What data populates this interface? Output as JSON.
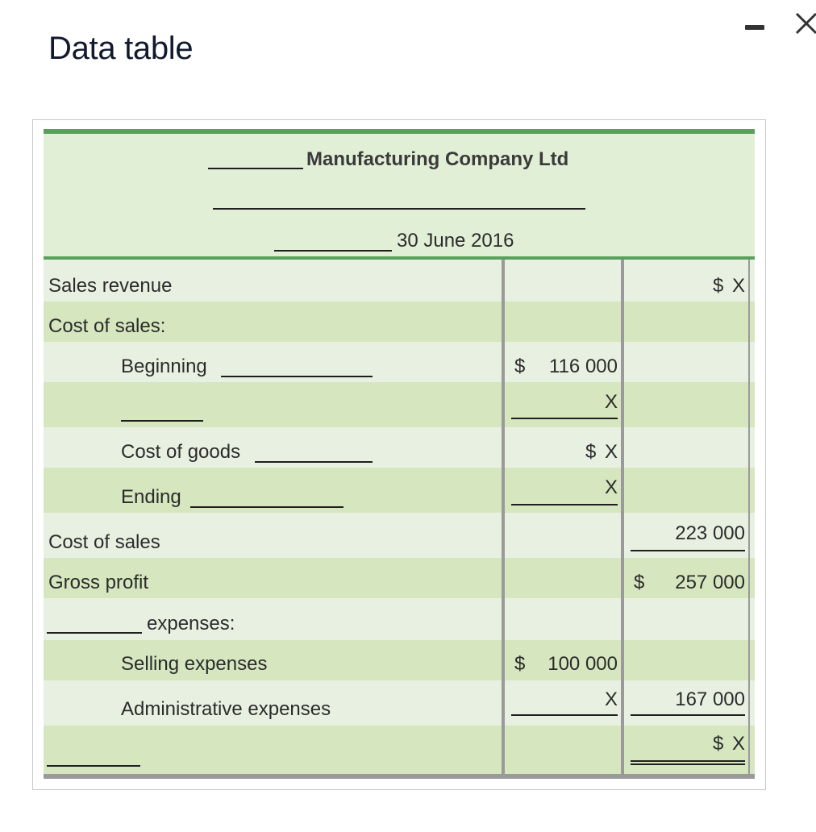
{
  "window": {
    "title": "Data table"
  },
  "header": {
    "company": "Manufacturing Company Ltd",
    "date": "30 June 2016"
  },
  "rows": {
    "sales_revenue": {
      "label": "Sales revenue",
      "col2_cur": "$",
      "col2": "X"
    },
    "cost_of_sales_heading": {
      "label": "Cost of sales:"
    },
    "beginning": {
      "label": "Beginning",
      "col1_cur": "$",
      "col1": "116 000"
    },
    "blank_line": {
      "col1": "X"
    },
    "cost_of_goods": {
      "label": "Cost of goods",
      "col1_cur": "$",
      "col1": "X"
    },
    "ending": {
      "label": "Ending",
      "col1": "X"
    },
    "cost_of_sales": {
      "label": "Cost of sales",
      "col2": "223 000"
    },
    "gross_profit": {
      "label": "Gross profit",
      "col2_cur": "$",
      "col2": "257 000"
    },
    "expenses_heading": {
      "label": "expenses:"
    },
    "selling_expenses": {
      "label": "Selling expenses",
      "col1_cur": "$",
      "col1": "100 000"
    },
    "administrative_expenses": {
      "label": "Administrative expenses",
      "col1": "X",
      "col2": "167 000"
    },
    "final": {
      "col2_cur": "$",
      "col2": "X"
    }
  },
  "colors": {
    "accent_green": "#5aa05c",
    "row_light": "#e8f1e1",
    "row_dark": "#d6e6bf",
    "header_bg": "#e2efd7"
  }
}
